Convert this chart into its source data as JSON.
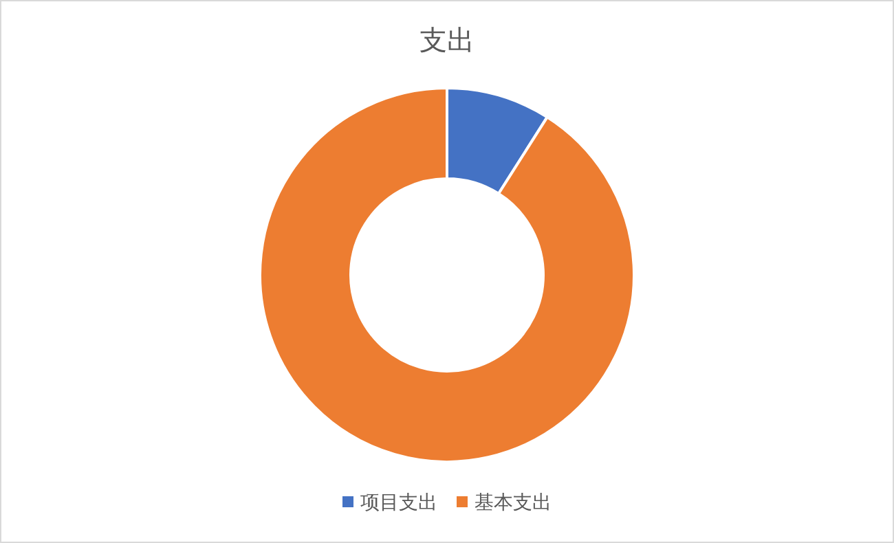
{
  "chart_data": {
    "type": "donut",
    "title": "支出",
    "categories": [
      "项目支出",
      "基本支出"
    ],
    "values": [
      9,
      91
    ],
    "colors": [
      "#4472c4",
      "#ed7d31"
    ],
    "legend": "bottom"
  }
}
